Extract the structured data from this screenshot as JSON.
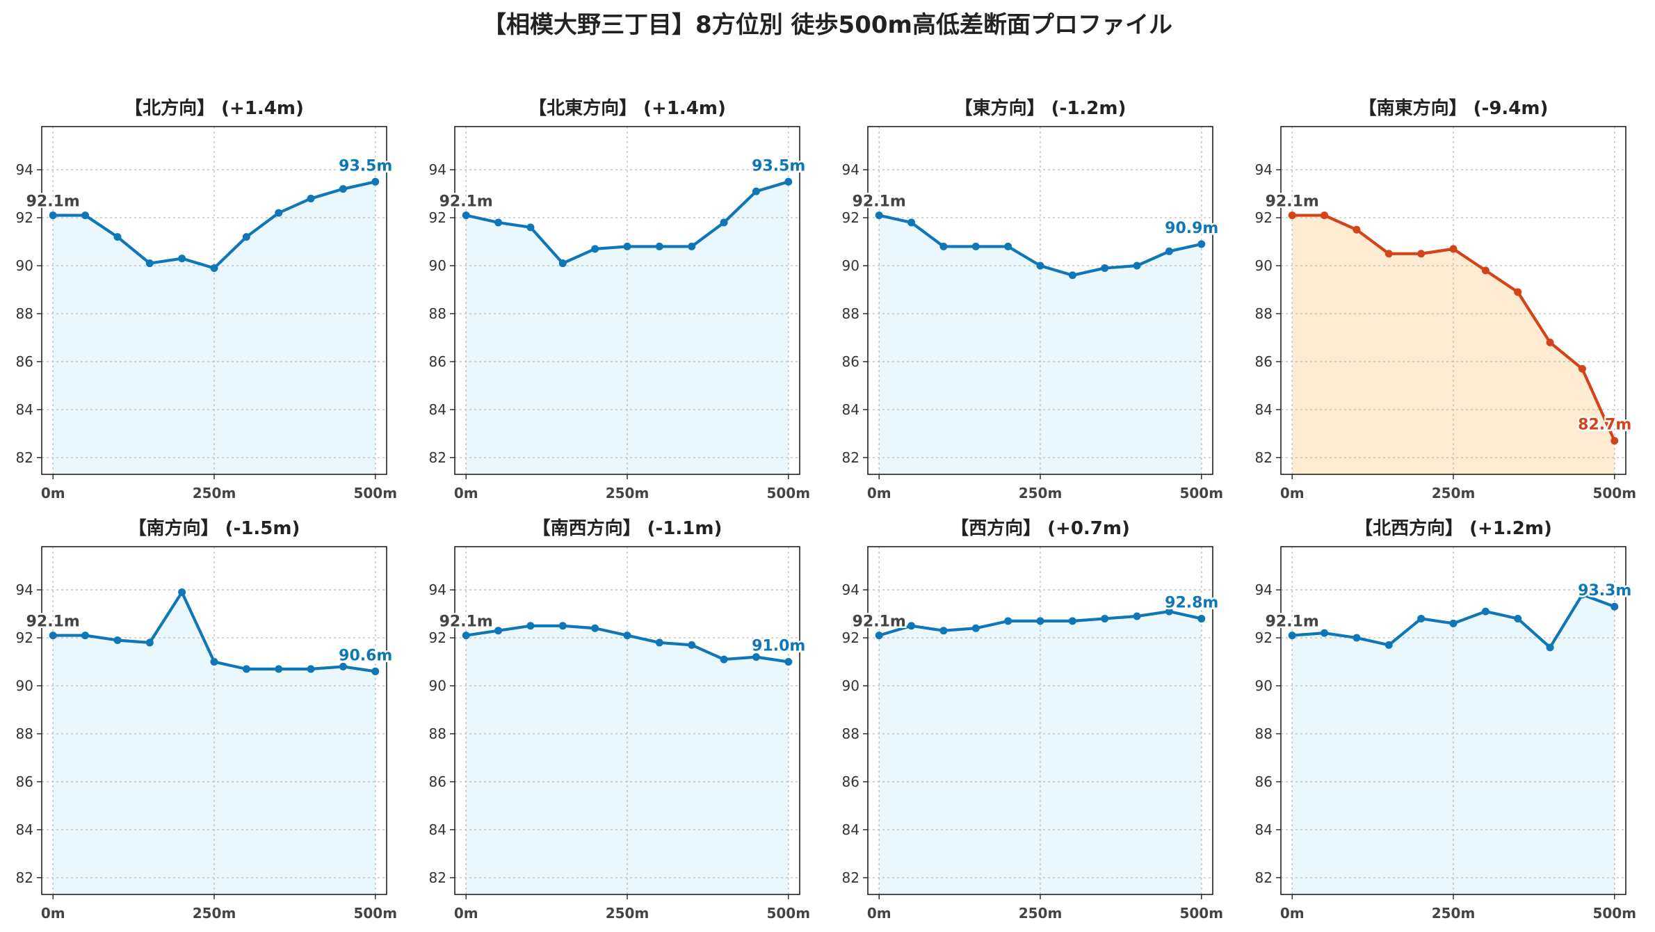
{
  "title": "【相模大野三丁目】8方位別 徒歩500m高低差断面プロファイル",
  "colors": {
    "normal_line": "#0f77b8",
    "normal_fill": "#eaf7fd",
    "highlight_line": "#d5431b",
    "highlight_fill": "#fdebd2",
    "start_label": "#444444"
  },
  "chart_data": [
    {
      "type": "area",
      "title": "【北方向】 (+1.4m)",
      "x": [
        0,
        50,
        100,
        150,
        200,
        250,
        300,
        350,
        400,
        450,
        500
      ],
      "x_ticks": [
        "0m",
        "250m",
        "500m"
      ],
      "y_ticks": [
        82,
        84,
        86,
        88,
        90,
        92,
        94
      ],
      "ylim": [
        81.3,
        95.8
      ],
      "grid": true,
      "highlight": false,
      "series": [
        {
          "values": [
            92.1,
            92.1,
            91.2,
            90.1,
            90.3,
            89.9,
            91.2,
            92.2,
            92.8,
            93.2,
            93.5
          ]
        }
      ],
      "start_label": "92.1m",
      "end_label": "93.5m"
    },
    {
      "type": "area",
      "title": "【北東方向】 (+1.4m)",
      "x": [
        0,
        50,
        100,
        150,
        200,
        250,
        300,
        350,
        400,
        450,
        500
      ],
      "x_ticks": [
        "0m",
        "250m",
        "500m"
      ],
      "y_ticks": [
        82,
        84,
        86,
        88,
        90,
        92,
        94
      ],
      "ylim": [
        81.3,
        95.8
      ],
      "grid": true,
      "highlight": false,
      "series": [
        {
          "values": [
            92.1,
            91.8,
            91.6,
            90.1,
            90.7,
            90.8,
            90.8,
            90.8,
            91.8,
            93.1,
            93.5
          ]
        }
      ],
      "start_label": "92.1m",
      "end_label": "93.5m"
    },
    {
      "type": "area",
      "title": "【東方向】 (-1.2m)",
      "x": [
        0,
        50,
        100,
        150,
        200,
        250,
        300,
        350,
        400,
        450,
        500
      ],
      "x_ticks": [
        "0m",
        "250m",
        "500m"
      ],
      "y_ticks": [
        82,
        84,
        86,
        88,
        90,
        92,
        94
      ],
      "ylim": [
        81.3,
        95.8
      ],
      "grid": true,
      "highlight": false,
      "series": [
        {
          "values": [
            92.1,
            91.8,
            90.8,
            90.8,
            90.8,
            90.0,
            89.6,
            89.9,
            90.0,
            90.6,
            90.9
          ]
        }
      ],
      "start_label": "92.1m",
      "end_label": "90.9m"
    },
    {
      "type": "area",
      "title": "【南東方向】 (-9.4m)",
      "x": [
        0,
        50,
        100,
        150,
        200,
        250,
        300,
        350,
        400,
        450,
        500
      ],
      "x_ticks": [
        "0m",
        "250m",
        "500m"
      ],
      "y_ticks": [
        82,
        84,
        86,
        88,
        90,
        92,
        94
      ],
      "ylim": [
        81.3,
        95.8
      ],
      "grid": true,
      "highlight": true,
      "series": [
        {
          "values": [
            92.1,
            92.1,
            91.5,
            90.5,
            90.5,
            90.7,
            89.8,
            88.9,
            86.8,
            85.7,
            82.7
          ]
        }
      ],
      "start_label": "92.1m",
      "end_label": "82.7m"
    },
    {
      "type": "area",
      "title": "【南方向】 (-1.5m)",
      "x": [
        0,
        50,
        100,
        150,
        200,
        250,
        300,
        350,
        400,
        450,
        500
      ],
      "x_ticks": [
        "0m",
        "250m",
        "500m"
      ],
      "y_ticks": [
        82,
        84,
        86,
        88,
        90,
        92,
        94
      ],
      "ylim": [
        81.3,
        95.8
      ],
      "grid": true,
      "highlight": false,
      "series": [
        {
          "values": [
            92.1,
            92.1,
            91.9,
            91.8,
            93.9,
            91.0,
            90.7,
            90.7,
            90.7,
            90.8,
            90.6
          ]
        }
      ],
      "start_label": "92.1m",
      "end_label": "90.6m"
    },
    {
      "type": "area",
      "title": "【南西方向】 (-1.1m)",
      "x": [
        0,
        50,
        100,
        150,
        200,
        250,
        300,
        350,
        400,
        450,
        500
      ],
      "x_ticks": [
        "0m",
        "250m",
        "500m"
      ],
      "y_ticks": [
        82,
        84,
        86,
        88,
        90,
        92,
        94
      ],
      "ylim": [
        81.3,
        95.8
      ],
      "grid": true,
      "highlight": false,
      "series": [
        {
          "values": [
            92.1,
            92.3,
            92.5,
            92.5,
            92.4,
            92.1,
            91.8,
            91.7,
            91.1,
            91.2,
            91.0
          ]
        }
      ],
      "start_label": "92.1m",
      "end_label": "91.0m"
    },
    {
      "type": "area",
      "title": "【西方向】 (+0.7m)",
      "x": [
        0,
        50,
        100,
        150,
        200,
        250,
        300,
        350,
        400,
        450,
        500
      ],
      "x_ticks": [
        "0m",
        "250m",
        "500m"
      ],
      "y_ticks": [
        82,
        84,
        86,
        88,
        90,
        92,
        94
      ],
      "ylim": [
        81.3,
        95.8
      ],
      "grid": true,
      "highlight": false,
      "series": [
        {
          "values": [
            92.1,
            92.5,
            92.3,
            92.4,
            92.7,
            92.7,
            92.7,
            92.8,
            92.9,
            93.1,
            92.8
          ]
        }
      ],
      "start_label": "92.1m",
      "end_label": "92.8m"
    },
    {
      "type": "area",
      "title": "【北西方向】 (+1.2m)",
      "x": [
        0,
        50,
        100,
        150,
        200,
        250,
        300,
        350,
        400,
        450,
        500
      ],
      "x_ticks": [
        "0m",
        "250m",
        "500m"
      ],
      "y_ticks": [
        82,
        84,
        86,
        88,
        90,
        92,
        94
      ],
      "ylim": [
        81.3,
        95.8
      ],
      "grid": true,
      "highlight": false,
      "series": [
        {
          "values": [
            92.1,
            92.2,
            92.0,
            91.7,
            92.8,
            92.6,
            93.1,
            92.8,
            91.6,
            93.8,
            93.3
          ]
        }
      ],
      "start_label": "92.1m",
      "end_label": "93.3m"
    }
  ]
}
